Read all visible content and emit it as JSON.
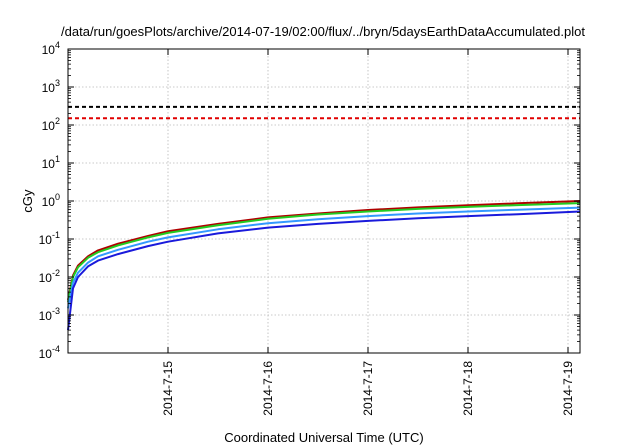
{
  "chart_data": {
    "type": "line",
    "title": "/data/run/goesPlots/archive/2014-07-19/02:00/flux/../bryn/5daysEarthDataAccumulated.plot",
    "xlabel": "Coordinated Universal Time (UTC)",
    "ylabel": "cGy",
    "yscale": "log",
    "ylim": [
      0.0001,
      10000
    ],
    "xlim": [
      0,
      5.12
    ],
    "x_ticks": [
      {
        "label": "2014-7-15",
        "value": 1
      },
      {
        "label": "2014-7-16",
        "value": 2
      },
      {
        "label": "2014-7-17",
        "value": 3
      },
      {
        "label": "2014-7-18",
        "value": 4
      },
      {
        "label": "2014-7-19",
        "value": 5
      }
    ],
    "y_ticks": [
      {
        "base": "10",
        "exp": "-4",
        "value": 0.0001
      },
      {
        "base": "10",
        "exp": "-3",
        "value": 0.001
      },
      {
        "base": "10",
        "exp": "-2",
        "value": 0.01
      },
      {
        "base": "10",
        "exp": "-1",
        "value": 0.1
      },
      {
        "base": "10",
        "exp": "0",
        "value": 1
      },
      {
        "base": "10",
        "exp": "1",
        "value": 10
      },
      {
        "base": "10",
        "exp": "2",
        "value": 100
      },
      {
        "base": "10",
        "exp": "3",
        "value": 1000
      },
      {
        "base": "10",
        "exp": "4",
        "value": 10000
      }
    ],
    "grid": true,
    "thresholds": [
      {
        "value": 300,
        "color": "#000000",
        "style": "dashed"
      },
      {
        "value": 150,
        "color": "#e00000",
        "style": "dashed"
      }
    ],
    "series": [
      {
        "color": "#b00000",
        "x": [
          0.0,
          0.05,
          0.1,
          0.2,
          0.3,
          0.5,
          0.8,
          1.0,
          1.5,
          2.0,
          2.5,
          3.0,
          3.5,
          4.0,
          4.5,
          5.12
        ],
        "y": [
          0.0025,
          0.011,
          0.02,
          0.035,
          0.05,
          0.075,
          0.12,
          0.16,
          0.25,
          0.37,
          0.47,
          0.58,
          0.68,
          0.77,
          0.87,
          1.0
        ]
      },
      {
        "color": "#22cc22",
        "x": [
          0.0,
          0.05,
          0.1,
          0.2,
          0.3,
          0.5,
          0.8,
          1.0,
          1.5,
          2.0,
          2.5,
          3.0,
          3.5,
          4.0,
          4.5,
          5.12
        ],
        "y": [
          0.0022,
          0.01,
          0.018,
          0.032,
          0.045,
          0.068,
          0.11,
          0.145,
          0.23,
          0.34,
          0.44,
          0.53,
          0.62,
          0.7,
          0.78,
          0.88
        ]
      },
      {
        "color": "#3399ff",
        "x": [
          0.0,
          0.05,
          0.1,
          0.2,
          0.3,
          0.5,
          0.8,
          1.0,
          1.5,
          2.0,
          2.5,
          3.0,
          3.5,
          4.0,
          4.5,
          5.12
        ],
        "y": [
          0.0015,
          0.007,
          0.013,
          0.024,
          0.035,
          0.052,
          0.085,
          0.11,
          0.18,
          0.26,
          0.33,
          0.4,
          0.47,
          0.53,
          0.59,
          0.67
        ]
      },
      {
        "color": "#1a1adb",
        "x": [
          0.0,
          0.05,
          0.1,
          0.2,
          0.3,
          0.5,
          0.8,
          1.0,
          1.5,
          2.0,
          2.5,
          3.0,
          3.5,
          4.0,
          4.5,
          5.12
        ],
        "y": [
          0.0004,
          0.005,
          0.01,
          0.019,
          0.027,
          0.04,
          0.065,
          0.085,
          0.14,
          0.2,
          0.25,
          0.3,
          0.35,
          0.4,
          0.45,
          0.53
        ]
      }
    ]
  }
}
